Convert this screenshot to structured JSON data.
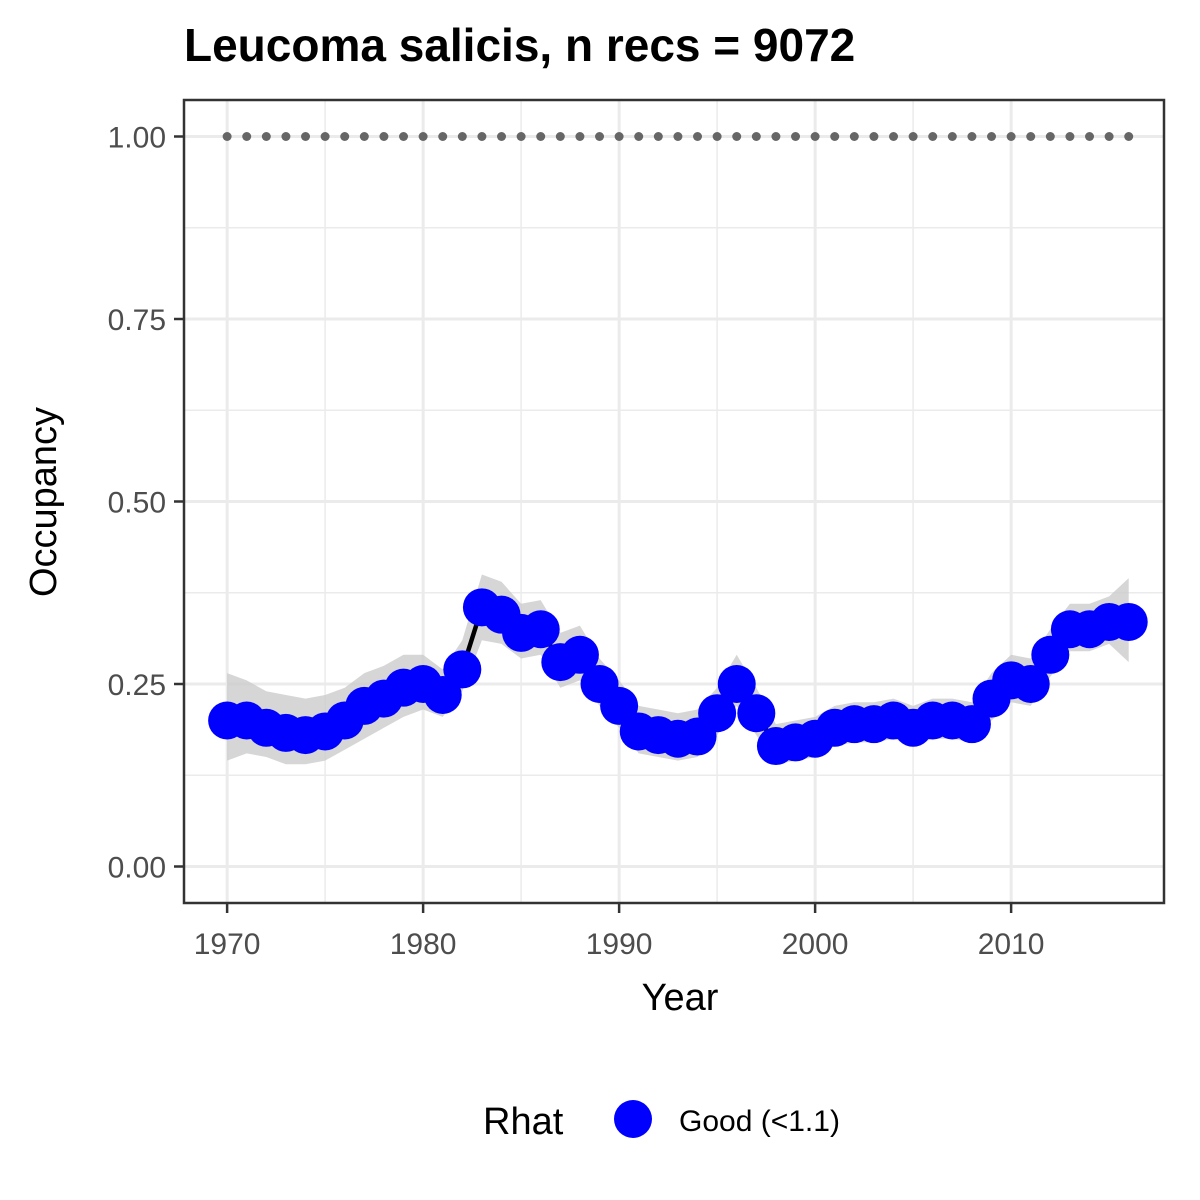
{
  "chart_data": {
    "type": "line",
    "title": "Leucoma salicis, n recs = 9072",
    "xlabel": "Year",
    "ylabel": "Occupancy",
    "xlim": [
      1967.8,
      2017.8
    ],
    "ylim": [
      -0.05,
      1.05
    ],
    "x_ticks": [
      1970,
      1980,
      1990,
      2000,
      2010
    ],
    "y_ticks": [
      0.0,
      0.25,
      0.5,
      0.75,
      1.0
    ],
    "y_tick_labels": [
      "0.00",
      "0.25",
      "0.50",
      "0.75",
      "1.00"
    ],
    "grid": true,
    "legend": {
      "title": "Rhat",
      "position": "bottom",
      "entries": [
        {
          "label": "Good (<1.1)",
          "color": "#0000ff"
        }
      ]
    },
    "colors": {
      "points": "#0000ff",
      "line": "#000000",
      "ribbon": "#cccccc",
      "reference": "#666666",
      "grid": "#ebebeb",
      "border": "#333333"
    },
    "series": [
      {
        "name": "Good (<1.1)",
        "x": [
          1970,
          1971,
          1972,
          1973,
          1974,
          1975,
          1976,
          1977,
          1978,
          1979,
          1980,
          1981,
          1982,
          1983,
          1984,
          1985,
          1986,
          1987,
          1988,
          1989,
          1990,
          1991,
          1992,
          1993,
          1994,
          1995,
          1996,
          1997,
          1998,
          1999,
          2000,
          2001,
          2002,
          2003,
          2004,
          2005,
          2006,
          2007,
          2008,
          2009,
          2010,
          2011,
          2012,
          2013,
          2014,
          2015,
          2016
        ],
        "y": [
          0.2,
          0.2,
          0.19,
          0.183,
          0.18,
          0.185,
          0.2,
          0.22,
          0.23,
          0.245,
          0.25,
          0.235,
          0.27,
          0.355,
          0.345,
          0.32,
          0.325,
          0.28,
          0.29,
          0.25,
          0.22,
          0.185,
          0.18,
          0.175,
          0.178,
          0.21,
          0.25,
          0.21,
          0.165,
          0.17,
          0.175,
          0.19,
          0.195,
          0.195,
          0.2,
          0.19,
          0.2,
          0.2,
          0.195,
          0.23,
          0.255,
          0.25,
          0.29,
          0.325,
          0.325,
          0.335,
          0.335
        ],
        "lower": [
          0.145,
          0.155,
          0.15,
          0.14,
          0.14,
          0.145,
          0.16,
          0.175,
          0.19,
          0.205,
          0.215,
          0.205,
          0.24,
          0.31,
          0.305,
          0.285,
          0.29,
          0.245,
          0.255,
          0.22,
          0.19,
          0.155,
          0.15,
          0.145,
          0.15,
          0.18,
          0.22,
          0.18,
          0.14,
          0.145,
          0.15,
          0.165,
          0.17,
          0.17,
          0.175,
          0.165,
          0.175,
          0.175,
          0.17,
          0.2,
          0.225,
          0.22,
          0.26,
          0.295,
          0.295,
          0.305,
          0.28
        ],
        "upper": [
          0.265,
          0.255,
          0.24,
          0.235,
          0.23,
          0.235,
          0.245,
          0.265,
          0.275,
          0.29,
          0.29,
          0.27,
          0.31,
          0.4,
          0.39,
          0.36,
          0.365,
          0.32,
          0.33,
          0.285,
          0.255,
          0.22,
          0.215,
          0.21,
          0.215,
          0.245,
          0.29,
          0.245,
          0.195,
          0.2,
          0.205,
          0.22,
          0.225,
          0.225,
          0.23,
          0.22,
          0.23,
          0.23,
          0.225,
          0.265,
          0.29,
          0.285,
          0.325,
          0.36,
          0.36,
          0.37,
          0.395
        ]
      },
      {
        "name": "",
        "role": "reference-dotted",
        "x": [
          1970,
          1971,
          1972,
          1973,
          1974,
          1975,
          1976,
          1977,
          1978,
          1979,
          1980,
          1981,
          1982,
          1983,
          1984,
          1985,
          1986,
          1987,
          1988,
          1989,
          1990,
          1991,
          1992,
          1993,
          1994,
          1995,
          1996,
          1997,
          1998,
          1999,
          2000,
          2001,
          2002,
          2003,
          2004,
          2005,
          2006,
          2007,
          2008,
          2009,
          2010,
          2011,
          2012,
          2013,
          2014,
          2015,
          2016
        ],
        "y": [
          1,
          1,
          1,
          1,
          1,
          1,
          1,
          1,
          1,
          1,
          1,
          1,
          1,
          1,
          1,
          1,
          1,
          1,
          1,
          1,
          1,
          1,
          1,
          1,
          1,
          1,
          1,
          1,
          1,
          1,
          1,
          1,
          1,
          1,
          1,
          1,
          1,
          1,
          1,
          1,
          1,
          1,
          1,
          1,
          1,
          1,
          1
        ]
      }
    ]
  }
}
